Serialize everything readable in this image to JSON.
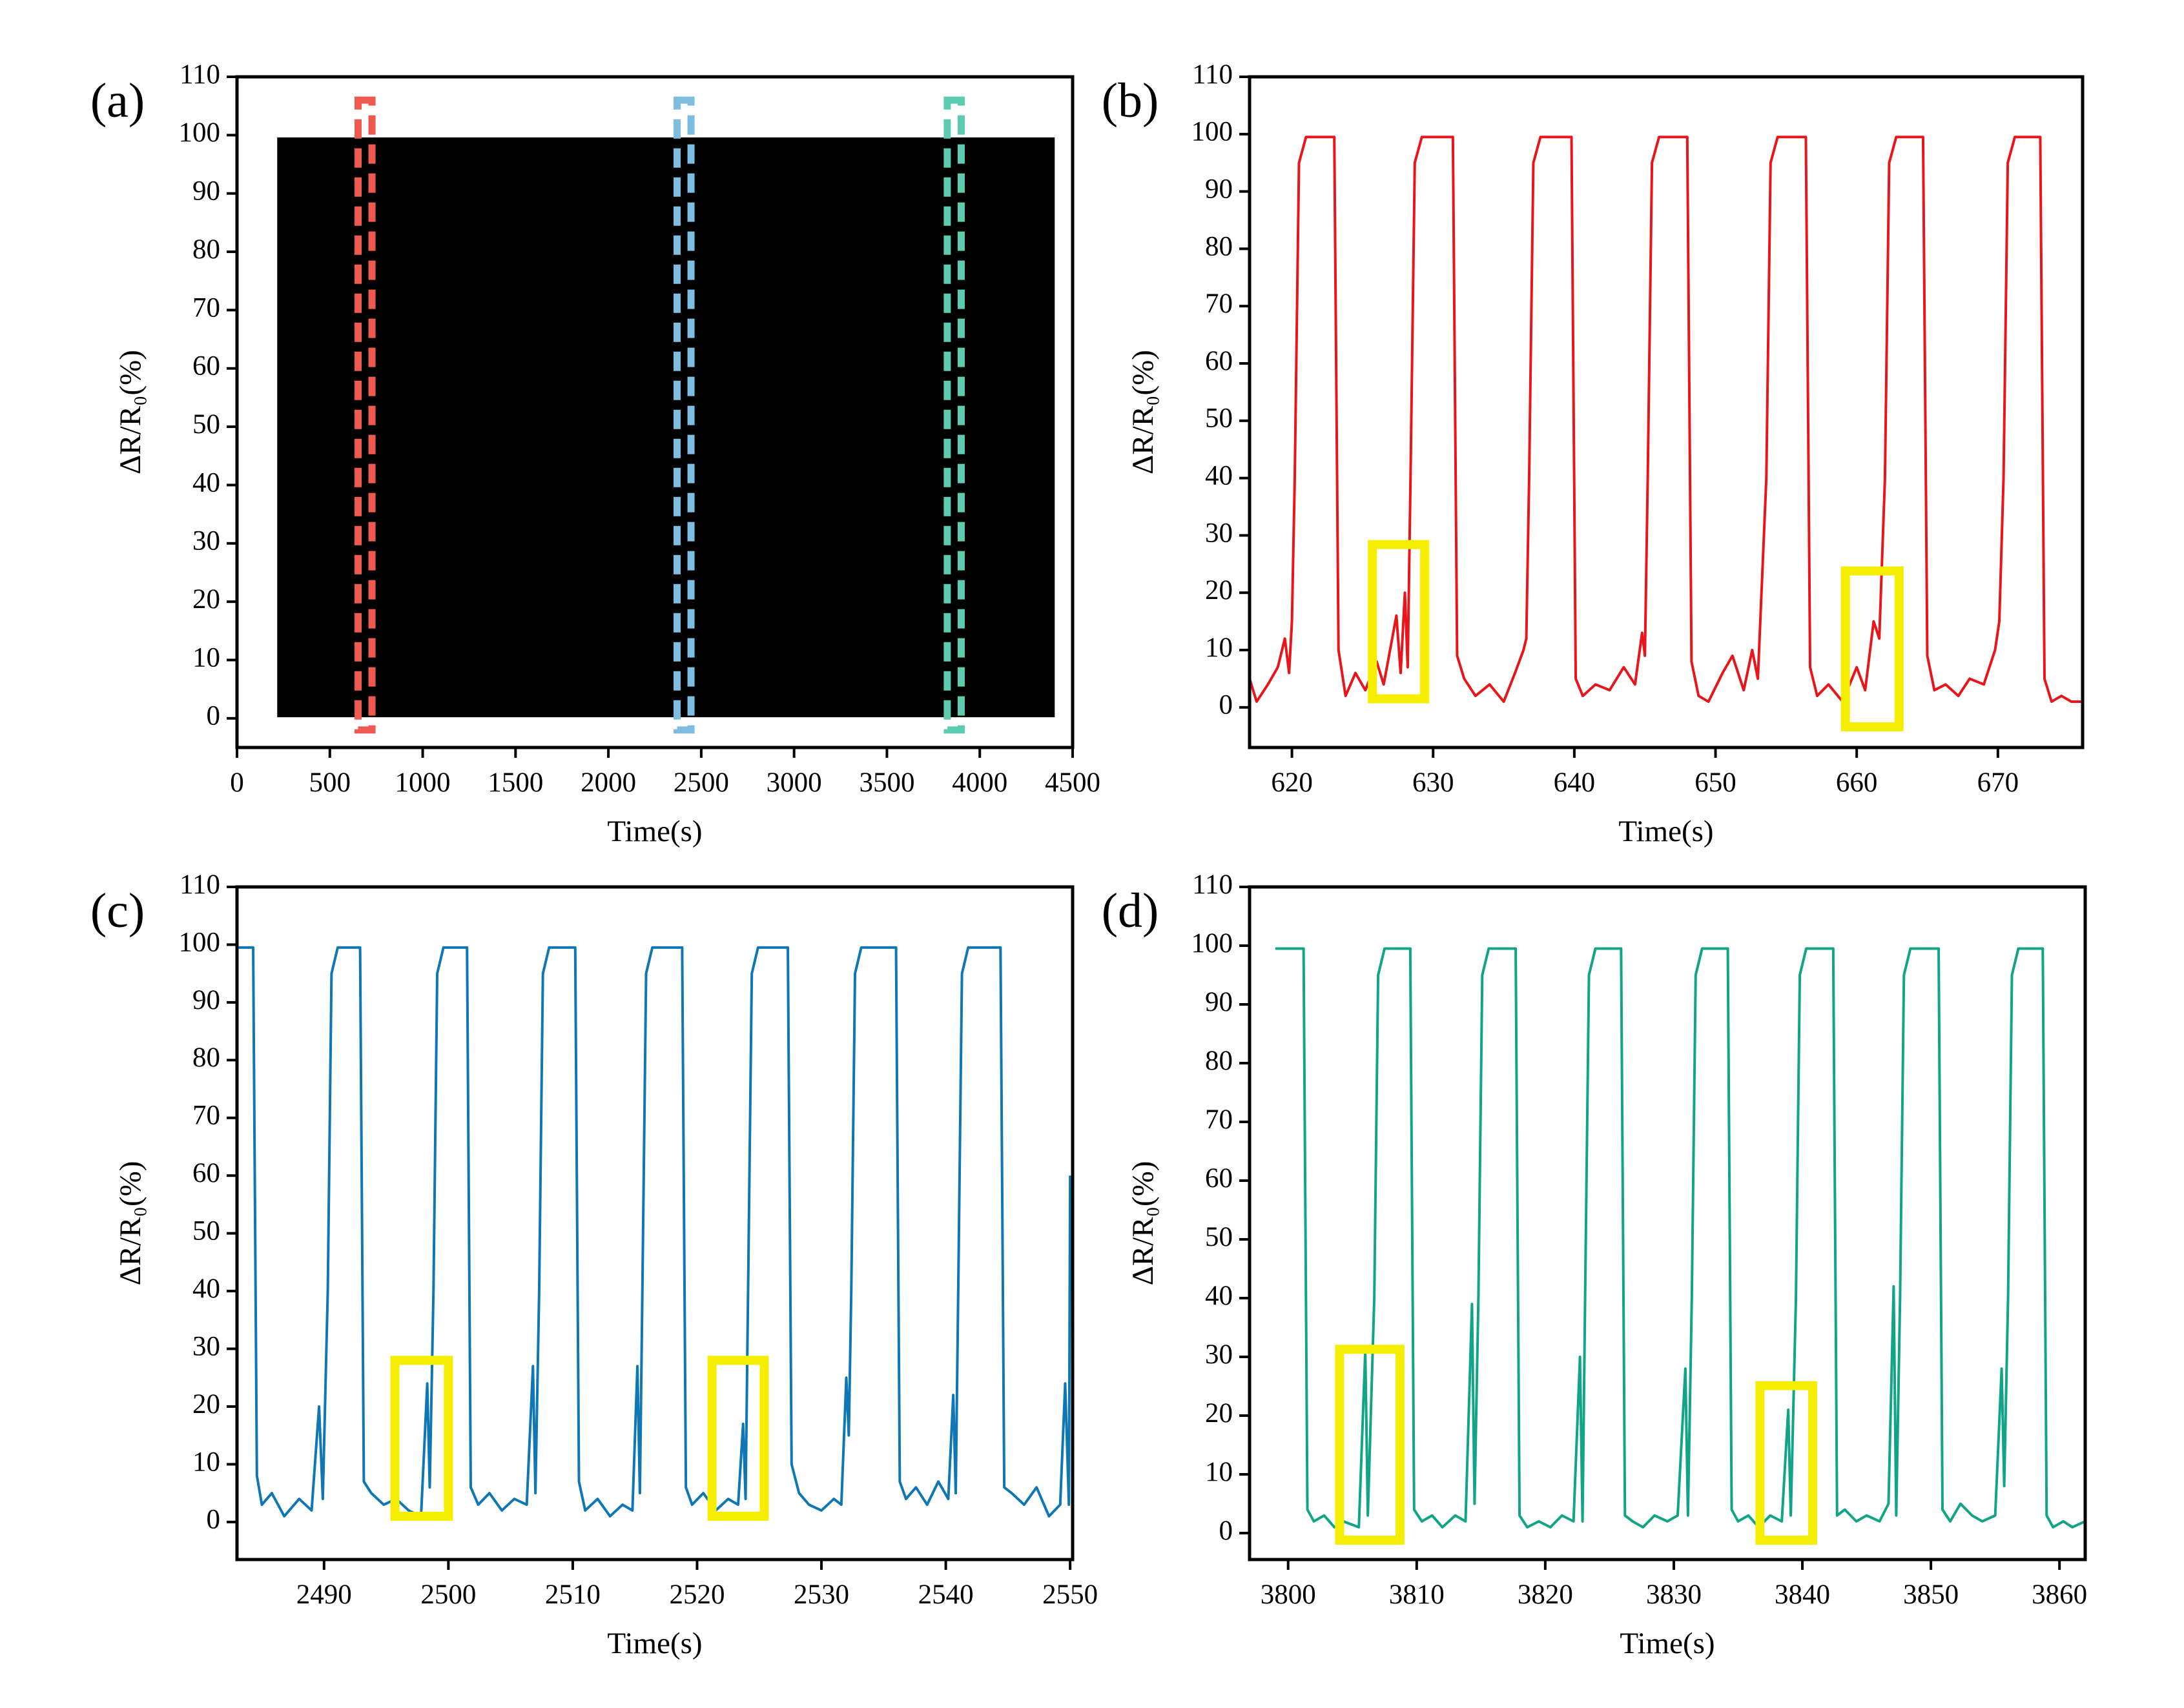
{
  "chart_data": [
    {
      "type": "band",
      "panel_label": "(a)",
      "x_label": "Time(s)",
      "y_label": "ΔR/R₀(%)",
      "xlim": [
        0,
        4500
      ],
      "xticks": [
        0,
        500,
        1000,
        1500,
        2000,
        2500,
        3000,
        3500,
        4000,
        4500
      ],
      "ylim": [
        -5,
        110
      ],
      "yticks": [
        0,
        10,
        20,
        30,
        40,
        50,
        60,
        70,
        80,
        90,
        100,
        110
      ],
      "x": [
        220,
        400,
        600,
        800,
        1000,
        1200,
        1400,
        1600,
        1800,
        2000,
        2200,
        2400,
        2600,
        2800,
        3000,
        3200,
        3400,
        3600,
        3800,
        4000,
        4200,
        4400
      ],
      "series": [
        {
          "color": "#000000",
          "values": [
            99.5,
            99.5,
            99.5,
            99.5,
            99.5,
            99.5,
            99.5,
            99.5,
            99.5,
            99.5,
            99.5,
            99.5,
            99.5,
            99.5,
            99.5,
            99.5,
            99.5,
            99.5,
            99.5,
            99.5,
            99.5,
            99.5
          ]
        },
        {
          "color": "#000000",
          "values": [
            0.3,
            0.3,
            0.3,
            0.3,
            0.3,
            0.3,
            0.3,
            0.3,
            0.3,
            0.3,
            0.3,
            0.3,
            0.3,
            0.3,
            0.3,
            0.3,
            0.3,
            0.3,
            0.3,
            0.3,
            0.3,
            0.3
          ]
        }
      ],
      "highlight_style": "dashed",
      "highlights": [
        {
          "x": [
            652,
            727
          ],
          "y": [
            -2,
            106
          ],
          "color": "#ef5a50"
        },
        {
          "x": [
            2370,
            2445
          ],
          "y": [
            -2,
            106
          ],
          "color": "#7fbde0"
        },
        {
          "x": [
            3825,
            3900
          ],
          "y": [
            -2,
            106
          ],
          "color": "#5ccbb0"
        }
      ]
    },
    {
      "type": "line",
      "panel_label": "(b)",
      "x_label": "Time(s)",
      "y_label": "ΔR/R₀(%)",
      "xlim": [
        617,
        676
      ],
      "xticks": [
        620,
        630,
        640,
        650,
        660,
        670
      ],
      "ylim": [
        -7,
        110
      ],
      "yticks": [
        0,
        10,
        20,
        30,
        40,
        50,
        60,
        70,
        80,
        90,
        100,
        110
      ],
      "x": [
        617.0,
        617.5,
        618.3,
        619.0,
        619.5,
        619.8,
        620.0,
        620.2,
        620.5,
        621.0,
        623.0,
        623.3,
        623.8,
        624.5,
        625.2,
        626.0,
        626.5,
        627.4,
        627.7,
        628.0,
        628.2,
        628.4,
        628.7,
        629.2,
        631.4,
        631.7,
        632.2,
        633.0,
        634.0,
        635.0,
        635.8,
        636.4,
        636.6,
        636.8,
        637.1,
        637.6,
        639.8,
        640.1,
        640.6,
        641.5,
        642.5,
        643.5,
        644.3,
        644.8,
        645.0,
        645.2,
        645.5,
        646.0,
        648.0,
        648.3,
        648.8,
        649.5,
        650.5,
        651.2,
        652.0,
        652.6,
        653.0,
        653.6,
        653.9,
        654.4,
        656.4,
        656.7,
        657.2,
        658.0,
        659.0,
        660.0,
        660.6,
        661.2,
        661.6,
        662.0,
        662.3,
        662.8,
        664.7,
        665.0,
        665.5,
        666.3,
        667.2,
        668.0,
        669.0,
        669.8,
        670.1,
        670.4,
        670.7,
        671.2,
        673.0,
        673.3,
        673.8,
        674.5,
        675.2,
        676.0
      ],
      "series": [
        {
          "color": "#e8161b",
          "values": [
            5,
            1,
            4,
            7,
            12,
            6,
            15,
            40,
            95,
            99.5,
            99.5,
            10,
            2,
            6,
            3,
            8,
            4,
            16,
            6,
            20,
            7,
            40,
            95,
            99.5,
            99.5,
            9,
            5,
            2,
            4,
            1,
            6,
            10,
            12,
            40,
            95,
            99.5,
            99.5,
            5,
            2,
            4,
            3,
            7,
            4,
            13,
            9,
            40,
            95,
            99.5,
            99.5,
            8,
            2,
            1,
            6,
            9,
            3,
            10,
            5,
            40,
            95,
            99.5,
            99.5,
            7,
            2,
            4,
            1,
            7,
            3,
            15,
            12,
            40,
            95,
            99.5,
            99.5,
            9,
            3,
            4,
            2,
            5,
            4,
            10,
            15,
            40,
            95,
            99.5,
            99.5,
            5,
            1,
            2,
            1,
            1
          ]
        }
      ],
      "highlight_style": "solid",
      "highlights": [
        {
          "x": [
            625.7,
            629.4
          ],
          "y": [
            1.5,
            28.4
          ],
          "color": "#f5ee00"
        },
        {
          "x": [
            659.2,
            663.0
          ],
          "y": [
            -3.4,
            23.8
          ],
          "color": "#f5ee00"
        }
      ]
    },
    {
      "type": "line",
      "panel_label": "(c)",
      "x_label": "Time(s)",
      "y_label": "ΔR/R₀(%)",
      "xlim": [
        2483,
        2550.2
      ],
      "xticks": [
        2490,
        2500,
        2510,
        2520,
        2530,
        2540,
        2550
      ],
      "ylim": [
        -6.5,
        110
      ],
      "yticks": [
        0,
        10,
        20,
        30,
        40,
        50,
        60,
        70,
        80,
        90,
        100,
        110
      ],
      "x": [
        2483,
        2484.3,
        2484.6,
        2485.0,
        2485.8,
        2486.8,
        2488,
        2489.0,
        2489.6,
        2489.9,
        2490.3,
        2490.6,
        2491.1,
        2492.9,
        2493.2,
        2493.8,
        2494.8,
        2495.8,
        2496.8,
        2497.8,
        2498.3,
        2498.5,
        2498.8,
        2499.1,
        2499.6,
        2501.5,
        2501.8,
        2502.4,
        2503.3,
        2504.3,
        2505.3,
        2506.3,
        2506.8,
        2507.0,
        2507.3,
        2507.6,
        2508.1,
        2510.2,
        2510.5,
        2511.0,
        2512.0,
        2513.0,
        2514.0,
        2514.8,
        2515.2,
        2515.4,
        2515.6,
        2515.9,
        2516.4,
        2518.8,
        2519.1,
        2519.6,
        2520.5,
        2521.5,
        2522.5,
        2523.3,
        2523.7,
        2523.9,
        2524.1,
        2524.4,
        2524.9,
        2527.3,
        2527.6,
        2528.2,
        2529.0,
        2530.0,
        2531.0,
        2531.6,
        2532.0,
        2532.2,
        2532.4,
        2532.7,
        2533.2,
        2536.0,
        2536.3,
        2536.8,
        2537.6,
        2538.5,
        2539.4,
        2540.2,
        2540.6,
        2540.8,
        2541.0,
        2541.3,
        2541.8,
        2544.4,
        2544.7,
        2545.3,
        2546.3,
        2547.3,
        2548.3,
        2549.2,
        2549.6,
        2549.9,
        2550.0
      ],
      "series": [
        {
          "color": "#0f78b4",
          "values": [
            99.5,
            99.5,
            8,
            3,
            5,
            1,
            4,
            2,
            20,
            4,
            40,
            95,
            99.5,
            99.5,
            7,
            5,
            3,
            4,
            2,
            1,
            24,
            6,
            40,
            95,
            99.5,
            99.5,
            6,
            3,
            5,
            2,
            4,
            3,
            27,
            5,
            40,
            95,
            99.5,
            99.5,
            7,
            2,
            4,
            1,
            3,
            2,
            27,
            5,
            40,
            95,
            99.5,
            99.5,
            6,
            3,
            5,
            2,
            4,
            3,
            17,
            4,
            40,
            95,
            99.5,
            99.5,
            10,
            5,
            3,
            2,
            4,
            3,
            25,
            15,
            40,
            95,
            99.5,
            99.5,
            7,
            4,
            6,
            3,
            7,
            4,
            22,
            5,
            40,
            95,
            99.5,
            99.5,
            6,
            5,
            3,
            6,
            1,
            3,
            24,
            3,
            60
          ]
        }
      ],
      "highlight_style": "solid",
      "highlights": [
        {
          "x": [
            2495.7,
            2500.0
          ],
          "y": [
            1,
            28
          ],
          "color": "#f5ee00"
        },
        {
          "x": [
            2521.2,
            2525.4
          ],
          "y": [
            1,
            28
          ],
          "color": "#f5ee00"
        }
      ]
    },
    {
      "type": "line",
      "panel_label": "(d)",
      "x_label": "Time(s)",
      "y_label": "ΔR/R₀(%)",
      "xlim": [
        3797,
        3862
      ],
      "xticks": [
        3800,
        3810,
        3820,
        3830,
        3840,
        3850,
        3860
      ],
      "ylim": [
        -4.5,
        110
      ],
      "yticks": [
        0,
        10,
        20,
        30,
        40,
        50,
        60,
        70,
        80,
        90,
        100,
        110
      ],
      "x": [
        3799,
        3801.2,
        3801.5,
        3802.0,
        3802.8,
        3803.6,
        3804.3,
        3805.5,
        3806.0,
        3806.2,
        3806.7,
        3807.0,
        3807.5,
        3809.5,
        3809.8,
        3810.4,
        3811.2,
        3812.0,
        3813.0,
        3813.8,
        3814.3,
        3814.5,
        3814.8,
        3815.1,
        3815.6,
        3817.7,
        3818.0,
        3818.6,
        3819.5,
        3820.4,
        3821.3,
        3822.2,
        3822.7,
        3822.9,
        3823.1,
        3823.4,
        3823.9,
        3825.9,
        3826.2,
        3826.8,
        3827.6,
        3828.5,
        3829.5,
        3830.3,
        3830.9,
        3831.1,
        3831.4,
        3831.7,
        3832.2,
        3834.2,
        3834.5,
        3835.0,
        3835.8,
        3836.6,
        3837.5,
        3838.4,
        3838.9,
        3839.1,
        3839.5,
        3839.8,
        3840.3,
        3842.4,
        3842.7,
        3843.3,
        3844.2,
        3845.0,
        3846.0,
        3846.7,
        3847.1,
        3847.3,
        3847.6,
        3847.9,
        3848.4,
        3850.6,
        3850.9,
        3851.5,
        3852.3,
        3853.2,
        3854.0,
        3855.0,
        3855.5,
        3855.7,
        3856.0,
        3856.3,
        3856.8,
        3858.7,
        3859.0,
        3859.5,
        3860.3,
        3861.0,
        3862
      ],
      "series": [
        {
          "color": "#11a585",
          "values": [
            99.5,
            99.5,
            4,
            2,
            3,
            1,
            2,
            1,
            31,
            3,
            40,
            95,
            99.5,
            99.5,
            4,
            2,
            3,
            1,
            3,
            2,
            39,
            5,
            40,
            95,
            99.5,
            99.5,
            3,
            1,
            2,
            1,
            3,
            2,
            30,
            2,
            40,
            95,
            99.5,
            99.5,
            3,
            2,
            1,
            3,
            2,
            3,
            28,
            3,
            40,
            95,
            99.5,
            99.5,
            4,
            2,
            3,
            1,
            3,
            2,
            21,
            3,
            40,
            95,
            99.5,
            99.5,
            3,
            4,
            2,
            3,
            2,
            5,
            42,
            3,
            40,
            95,
            99.5,
            99.5,
            4,
            2,
            5,
            3,
            2,
            3,
            28,
            8,
            40,
            95,
            99.5,
            99.5,
            3,
            1,
            2,
            1,
            2
          ]
        }
      ],
      "highlight_style": "solid",
      "highlights": [
        {
          "x": [
            3804.0,
            3808.7
          ],
          "y": [
            -1.2,
            31.3
          ],
          "color": "#f5ee00"
        },
        {
          "x": [
            3836.7,
            3840.8
          ],
          "y": [
            -1.2,
            25.1
          ],
          "color": "#f5ee00"
        }
      ]
    }
  ]
}
